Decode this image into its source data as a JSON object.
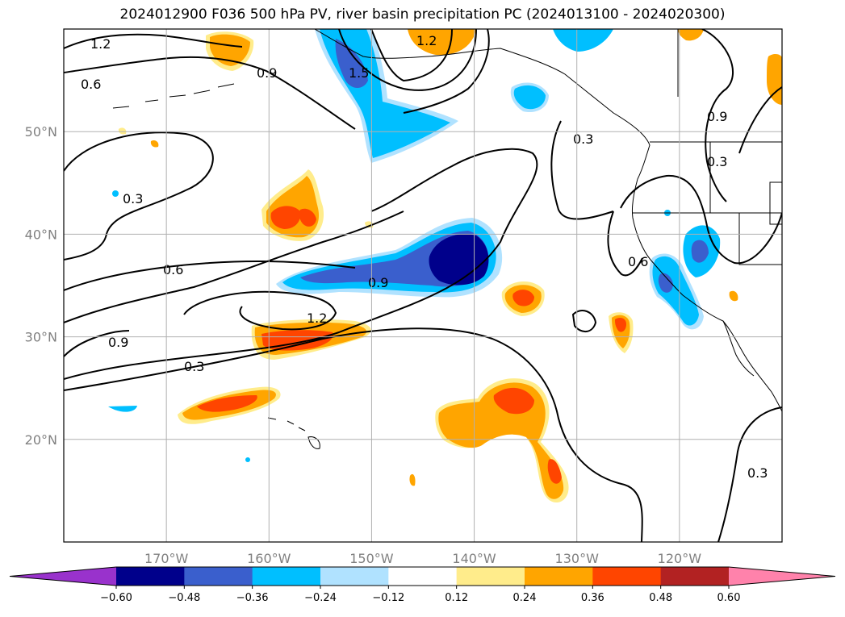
{
  "title": "2024012900 F036 500 hPa PV, river basin precipitation PC (2024013100 - 2024020300)",
  "map": {
    "lon_range": [
      -180,
      -110
    ],
    "lat_range": [
      10,
      60
    ],
    "lat_ticks": [
      {
        "value": 50,
        "label": "50°N"
      },
      {
        "value": 40,
        "label": "40°N"
      },
      {
        "value": 30,
        "label": "30°N"
      },
      {
        "value": 20,
        "label": "20°N"
      }
    ],
    "lon_ticks": [
      {
        "value": -170,
        "label": "170°W"
      },
      {
        "value": -160,
        "label": "160°W"
      },
      {
        "value": -150,
        "label": "150°W"
      },
      {
        "value": -140,
        "label": "140°W"
      },
      {
        "value": -130,
        "label": "130°W"
      },
      {
        "value": -120,
        "label": "120°W"
      }
    ],
    "grid": true,
    "contour_labels": [
      "1.2",
      "0.6",
      "0.9",
      "1.5",
      "1.2",
      "0.3",
      "0.6",
      "0.9",
      "1.2",
      "0.9",
      "0.3",
      "0.3",
      "0.3",
      "0.6",
      "0.3",
      "0.9"
    ]
  },
  "colorbar": {
    "colors": [
      "#9932cc",
      "#00008b",
      "#3a5fcd",
      "#00bfff",
      "#b0e2ff",
      "#ffffff",
      "#ffec8b",
      "#ffa500",
      "#ff4500",
      "#b22222",
      "#ff82ab"
    ],
    "tick_labels": [
      "−0.60",
      "−0.48",
      "−0.36",
      "−0.24",
      "−0.12",
      "0.12",
      "0.24",
      "0.36",
      "0.48",
      "0.60"
    ]
  }
}
